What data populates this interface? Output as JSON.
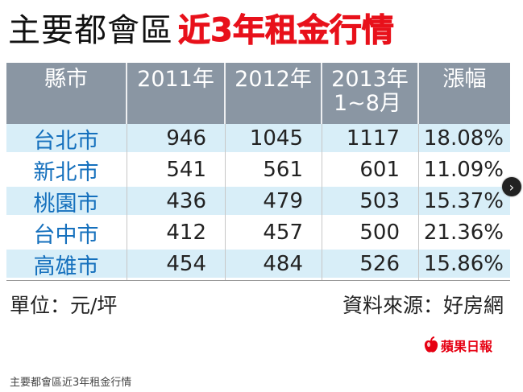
{
  "title": {
    "black": "主要都會區",
    "red": "近3年租金行情"
  },
  "table": {
    "headers": [
      {
        "line1": "縣市",
        "line2": ""
      },
      {
        "line1": "2011年",
        "line2": ""
      },
      {
        "line1": "2012年",
        "line2": ""
      },
      {
        "line1": "2013年",
        "line2": "1~8月"
      },
      {
        "line1": "漲幅",
        "line2": ""
      }
    ],
    "rows": [
      {
        "city": "台北市",
        "y2011": "946",
        "y2012": "1045",
        "y2013": "1117",
        "rise": "18.08%"
      },
      {
        "city": "新北市",
        "y2011": "541",
        "y2012": "561",
        "y2013": "601",
        "rise": "11.09%"
      },
      {
        "city": "桃園市",
        "y2011": "436",
        "y2012": "479",
        "y2013": "503",
        "rise": "15.37%"
      },
      {
        "city": "台中市",
        "y2011": "412",
        "y2012": "457",
        "y2013": "500",
        "rise": "21.36%"
      },
      {
        "city": "高雄市",
        "y2011": "454",
        "y2012": "484",
        "y2013": "526",
        "rise": "15.86%"
      }
    ]
  },
  "footer": {
    "unit": "單位：元/坪",
    "source": "資料來源：好房網"
  },
  "logo": {
    "text": "蘋果日報",
    "icon": "apple-icon"
  },
  "caption": "主要都會區近3年租金行情",
  "nav": {
    "icon": "chevron-right-icon",
    "glyph": "›"
  },
  "colors": {
    "header_bg": "#8a96a3",
    "row_light": "#d8eef8",
    "city_blue": "#1570bd",
    "title_red": "#e8111b",
    "logo_red": "#e60012"
  }
}
